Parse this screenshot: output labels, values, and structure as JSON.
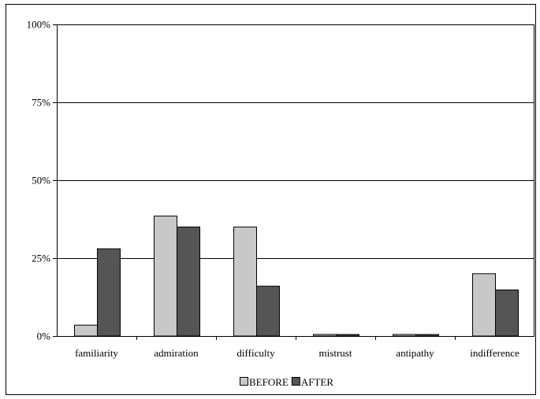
{
  "chart_data": {
    "type": "bar",
    "categories": [
      "familiarity",
      "admiration",
      "difficulty",
      "mistrust",
      "antipathy",
      "indifference"
    ],
    "series": [
      {
        "name": "BEFORE",
        "values": [
          3.5,
          38.5,
          35.0,
          0.5,
          0.5,
          20.0
        ],
        "color": "#c8c8c8"
      },
      {
        "name": "AFTER",
        "values": [
          28.0,
          35.0,
          16.0,
          0.5,
          0.5,
          14.8
        ],
        "color": "#555555"
      }
    ],
    "yticks": [
      {
        "value": 0,
        "label": "0%"
      },
      {
        "value": 25,
        "label": "25%"
      },
      {
        "value": 50,
        "label": "50%"
      },
      {
        "value": 75,
        "label": "75%"
      },
      {
        "value": 100,
        "label": "100%"
      }
    ],
    "ylim": [
      0,
      100
    ],
    "grid": true,
    "legend_position": "bottom-center",
    "title": "",
    "xlabel": "",
    "ylabel": ""
  }
}
